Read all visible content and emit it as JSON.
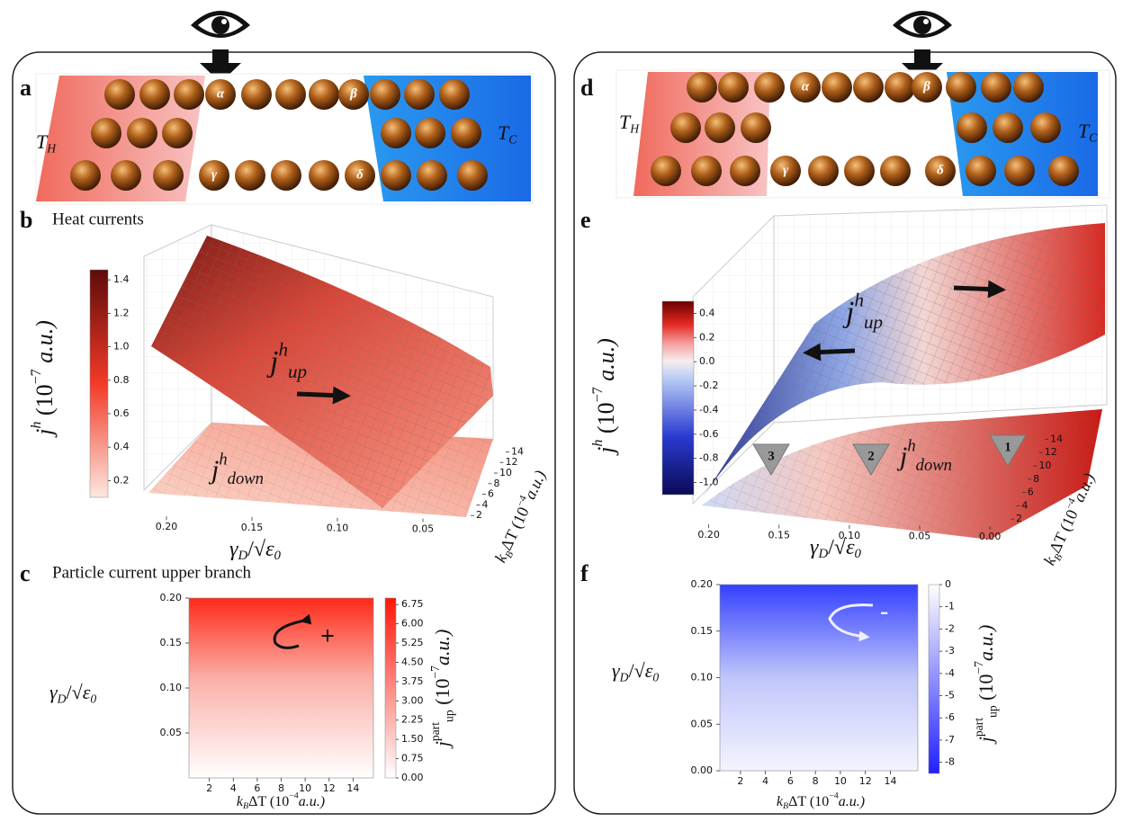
{
  "panel_a": {
    "label": "a",
    "hot": [
      "T",
      "H"
    ],
    "cold": [
      "T",
      "C"
    ],
    "sites": [
      "α",
      "β",
      "γ",
      "δ"
    ]
  },
  "panel_b": {
    "label": "b",
    "title": "Heat currents",
    "upper": [
      "j",
      "h",
      "up"
    ],
    "lower": [
      "j",
      "h",
      "down"
    ],
    "colorbar": {
      "lim": [
        0.1,
        1.46
      ],
      "ticks": [
        1.4,
        1.2,
        {
          "value": 1,
          "label": "1.0"
        },
        0.8,
        0.6,
        0.4,
        0.2
      ],
      "label": [
        "j",
        "h",
        " (10",
        "−7",
        " a.u.)"
      ]
    },
    "x_axis": {
      "lim": [
        0.21,
        0.02
      ],
      "ticks": [
        {
          "value": 0.2,
          "label": "0.20"
        },
        0.15,
        {
          "value": 0.1,
          "label": "0.10"
        },
        0.05
      ],
      "label": [
        "γ",
        "D",
        "/√",
        "ε",
        "0"
      ]
    },
    "depth_axis": {
      "lim": [
        0,
        16
      ],
      "ticks": [
        2,
        4,
        6,
        8,
        10,
        12,
        14
      ],
      "label": [
        "k",
        "B",
        "ΔT (10",
        "−4",
        "a.u.)"
      ]
    }
  },
  "panel_c": {
    "label": "c",
    "title": "Particle current upper branch",
    "sign": "+",
    "x_axis": {
      "lim": [
        0.3,
        15.7
      ],
      "ticks": [
        2,
        4,
        6,
        8,
        10,
        12,
        14
      ],
      "label": [
        "k",
        "B",
        "ΔT (10",
        "−4",
        "a.u.)"
      ]
    },
    "y_axis": {
      "lim": [
        0,
        0.2
      ],
      "ticks": [
        0.05,
        {
          "value": 0.1,
          "label": "0.10"
        },
        0.15,
        {
          "value": 0.2,
          "label": "0.20"
        }
      ],
      "label": [
        "γ",
        "D",
        "/√",
        "ε",
        "0"
      ]
    },
    "colorbar": {
      "lim": [
        0,
        7
      ],
      "ticks": [
        {
          "value": 0,
          "label": "0.00"
        },
        0.75,
        {
          "value": 1.5,
          "label": "1.50"
        },
        2.25,
        {
          "value": 3,
          "label": "3.00"
        },
        3.75,
        {
          "value": 4.5,
          "label": "4.50"
        },
        5.25,
        {
          "value": 6,
          "label": "6.00"
        },
        6.75
      ],
      "label": [
        "j",
        "part",
        "up",
        " (10",
        "−7",
        "a.u.)"
      ]
    }
  },
  "panel_d": {
    "label": "d",
    "hot": [
      "T",
      "H"
    ],
    "cold": [
      "T",
      "C"
    ],
    "sites": [
      "α",
      "β",
      "γ",
      "δ"
    ]
  },
  "panel_e": {
    "label": "e",
    "upper": [
      "j",
      "h",
      "up"
    ],
    "lower": [
      "j",
      "h",
      "down"
    ],
    "markers": [
      "1",
      "2",
      "3"
    ],
    "colorbar": {
      "lim": [
        -1.1,
        0.5
      ],
      "ticks": [
        0.4,
        0.2,
        {
          "value": 0,
          "label": "0.0"
        },
        -0.2,
        -0.4,
        -0.6,
        -0.8,
        {
          "value": -1,
          "label": "-1.0"
        }
      ],
      "label": [
        "j",
        "h",
        " (10",
        "−7",
        " a.u.)"
      ]
    },
    "x_axis": {
      "lim": [
        0.21,
        -0.005
      ],
      "ticks": [
        {
          "value": 0.2,
          "label": "0.20"
        },
        0.15,
        {
          "value": 0.1,
          "label": "0.10"
        },
        0.05,
        {
          "value": 0,
          "label": "0.00"
        }
      ],
      "label": [
        "γ",
        "D",
        "/√",
        "ε",
        "0"
      ]
    },
    "depth_axis": {
      "lim": [
        0,
        16
      ],
      "ticks": [
        2,
        4,
        6,
        8,
        10,
        12,
        14
      ],
      "label": [
        "k",
        "B",
        "ΔT (10",
        "−4",
        "a.u.)"
      ]
    }
  },
  "panel_f": {
    "label": "f",
    "sign": "-",
    "x_axis": {
      "lim": [
        0.35,
        16.2
      ],
      "ticks": [
        2,
        4,
        6,
        8,
        10,
        12,
        14
      ],
      "label": [
        "k",
        "B",
        "ΔT (10",
        "−4",
        "a.u.)"
      ]
    },
    "y_axis": {
      "lim": [
        0,
        0.2
      ],
      "ticks": [
        {
          "value": 0,
          "label": "0.00"
        },
        0.05,
        {
          "value": 0.1,
          "label": "0.10"
        },
        0.15,
        {
          "value": 0.2,
          "label": "0.20"
        }
      ],
      "label": [
        "γ",
        "D",
        "/√",
        "ε",
        "0"
      ]
    },
    "colorbar": {
      "lim": [
        -8.5,
        0
      ],
      "ticks": [
        0,
        -1,
        -2,
        -3,
        -4,
        -5,
        -6,
        -7,
        -8
      ],
      "label": [
        "j",
        "part",
        "up",
        " (10",
        "−7",
        "a.u.)"
      ]
    }
  }
}
